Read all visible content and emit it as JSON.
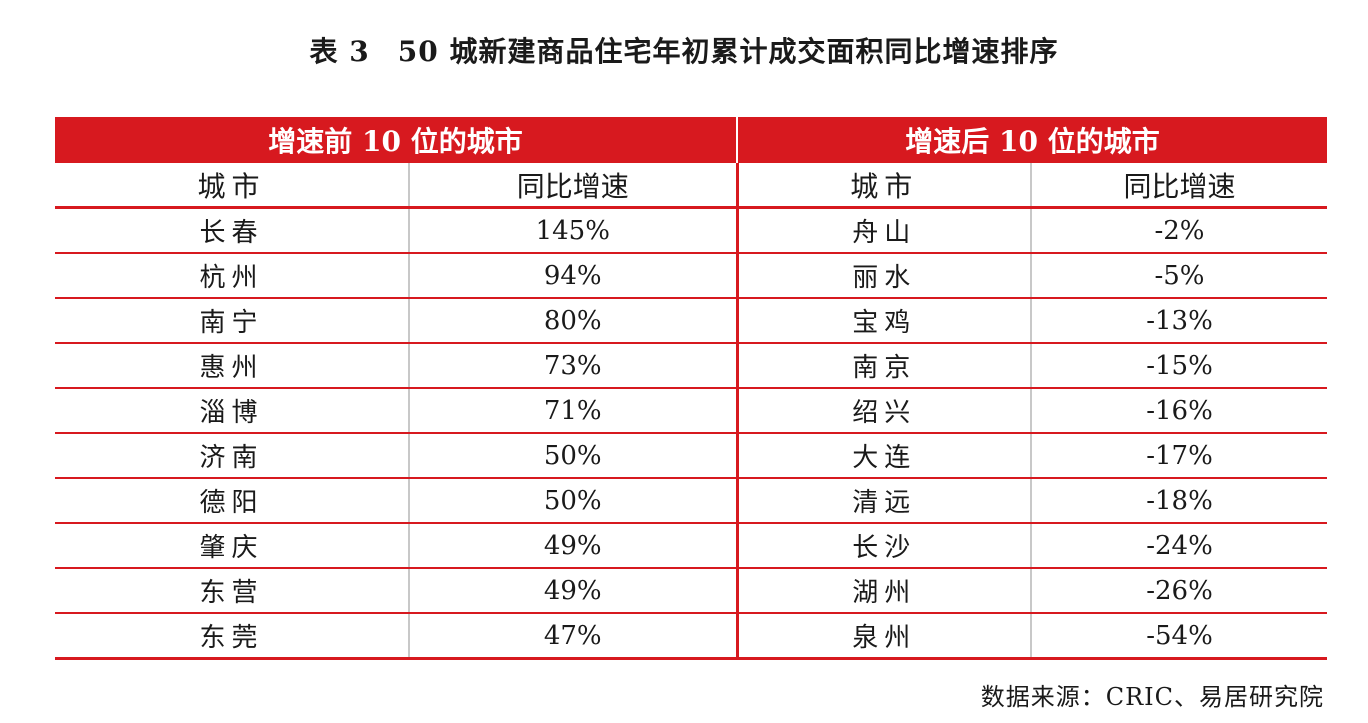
{
  "title": {
    "label": "表 3",
    "text": "50 城新建商品住宅年初累计成交面积同比增速排序"
  },
  "table": {
    "group_headers": [
      "增速前 10 位的城市",
      "增速后 10 位的城市"
    ],
    "column_headers": [
      "城市",
      "同比增速",
      "城市",
      "同比增速"
    ],
    "rows": [
      {
        "top_city": "长春",
        "top_growth": "145%",
        "bottom_city": "舟山",
        "bottom_growth": "-2%"
      },
      {
        "top_city": "杭州",
        "top_growth": "94%",
        "bottom_city": "丽水",
        "bottom_growth": "-5%"
      },
      {
        "top_city": "南宁",
        "top_growth": "80%",
        "bottom_city": "宝鸡",
        "bottom_growth": "-13%"
      },
      {
        "top_city": "惠州",
        "top_growth": "73%",
        "bottom_city": "南京",
        "bottom_growth": "-15%"
      },
      {
        "top_city": "淄博",
        "top_growth": "71%",
        "bottom_city": "绍兴",
        "bottom_growth": "-16%"
      },
      {
        "top_city": "济南",
        "top_growth": "50%",
        "bottom_city": "大连",
        "bottom_growth": "-17%"
      },
      {
        "top_city": "德阳",
        "top_growth": "50%",
        "bottom_city": "清远",
        "bottom_growth": "-18%"
      },
      {
        "top_city": "肇庆",
        "top_growth": "49%",
        "bottom_city": "长沙",
        "bottom_growth": "-24%"
      },
      {
        "top_city": "东营",
        "top_growth": "49%",
        "bottom_city": "湖州",
        "bottom_growth": "-26%"
      },
      {
        "top_city": "东莞",
        "top_growth": "47%",
        "bottom_city": "泉州",
        "bottom_growth": "-54%"
      }
    ]
  },
  "source": "数据来源：CRIC、易居研究院",
  "colors": {
    "accent_red": "#d7191f",
    "header_text": "#ffffff"
  }
}
